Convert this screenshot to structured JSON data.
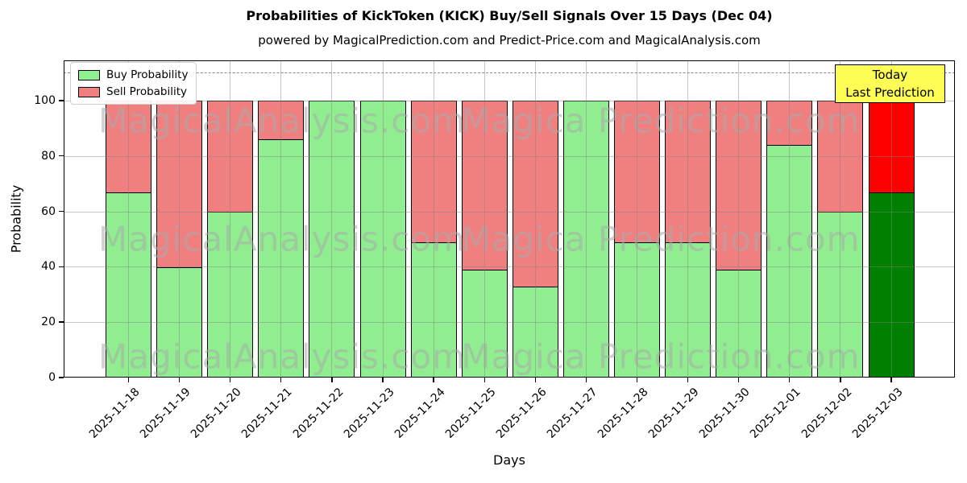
{
  "title": "Probabilities of KickToken (KICK) Buy/Sell Signals Over 15 Days (Dec 04)",
  "subtitle": "powered by MagicalPrediction.com and Predict-Price.com and MagicalAnalysis.com",
  "legend": {
    "buy_label": "Buy Probability",
    "sell_label": "Sell Probability"
  },
  "annotation": {
    "line1": "Today",
    "line2": "Last Prediction"
  },
  "axes": {
    "ylabel": "Probability",
    "xlabel": "Days",
    "yticks": [
      0,
      20,
      40,
      60,
      80,
      100
    ]
  },
  "watermarks": {
    "left": "MagicalAnalysis.com",
    "right": "Magica Prediction.com"
  },
  "colors": {
    "buy": "#90EE90",
    "sell": "#F08080",
    "today_buy": "#008000",
    "today_sell": "#FF0000",
    "annotation_bg": "#FDFD55",
    "grid": "#808080"
  },
  "chart_data": {
    "type": "bar",
    "stacked": true,
    "title": "Probabilities of KickToken (KICK) Buy/Sell Signals Over 15 Days (Dec 04)",
    "xlabel": "Days",
    "ylabel": "Probability",
    "categories": [
      "2025-11-18",
      "2025-11-19",
      "2025-11-20",
      "2025-11-21",
      "2025-11-22",
      "2025-11-23",
      "2025-11-24",
      "2025-11-25",
      "2025-11-26",
      "2025-11-27",
      "2025-11-28",
      "2025-11-29",
      "2025-11-30",
      "2025-12-01",
      "2025-12-02",
      "2025-12-03"
    ],
    "series": [
      {
        "name": "Buy Probability",
        "color": "#90EE90",
        "values": [
          67,
          40,
          60,
          86,
          100,
          100,
          49,
          39,
          33,
          100,
          49,
          49,
          39,
          84,
          60,
          67
        ]
      },
      {
        "name": "Sell Probability",
        "color": "#F08080",
        "values": [
          33,
          60,
          40,
          14,
          0,
          0,
          51,
          61,
          67,
          0,
          51,
          51,
          61,
          16,
          40,
          33
        ]
      }
    ],
    "today_index": 15,
    "today_colors": {
      "buy": "#008000",
      "sell": "#FF0000"
    },
    "ylim": [
      0,
      114.5
    ],
    "dashed_line_y": 110,
    "grid": true,
    "legend_position": "upper left"
  }
}
